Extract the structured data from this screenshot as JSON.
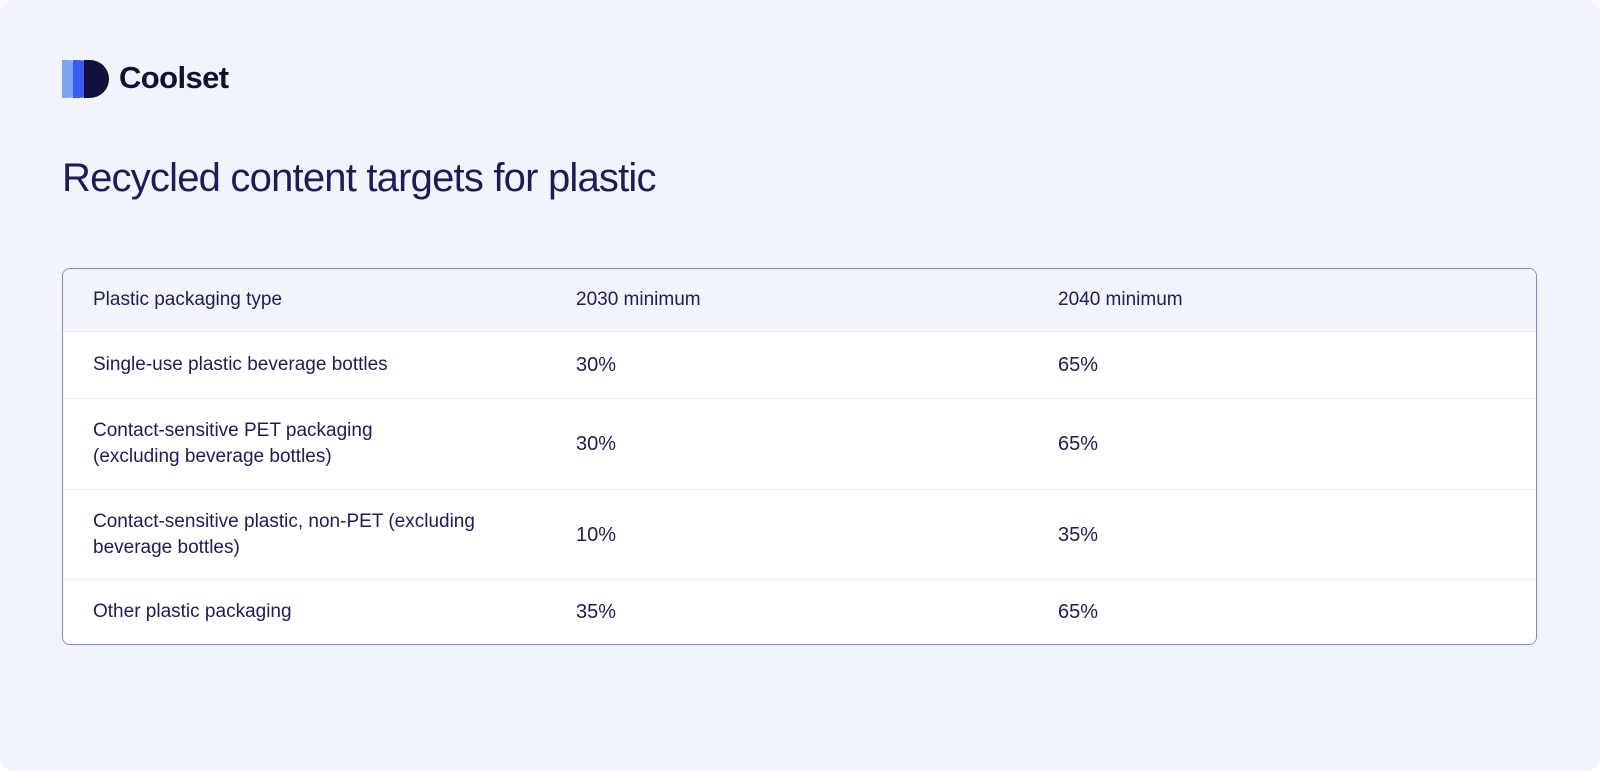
{
  "brand": {
    "name": "Coolset",
    "logo_icon": "three-overlapping-d-petals",
    "logo_colors": {
      "light_blue": "#7ea5f3",
      "blue": "#3a5cf1",
      "navy": "#10113c"
    }
  },
  "page": {
    "title": "Recycled content targets for plastic",
    "background_color": "#f1f4fb",
    "text_color": "#1b1d55",
    "table_border_color": "#8289d6"
  },
  "table": {
    "headers": [
      "Plastic packaging type",
      "2030 minimum",
      "2040 minimum"
    ],
    "rows": [
      [
        "Single-use plastic beverage bottles",
        "30%",
        "65%"
      ],
      [
        "Contact-sensitive PET packaging\n(excluding beverage bottles)",
        "30%",
        "65%"
      ],
      [
        "Contact-sensitive plastic, non-PET (excluding\nbeverage bottles)",
        "10%",
        "35%"
      ],
      [
        "Other plastic packaging",
        "35%",
        "65%"
      ]
    ]
  }
}
